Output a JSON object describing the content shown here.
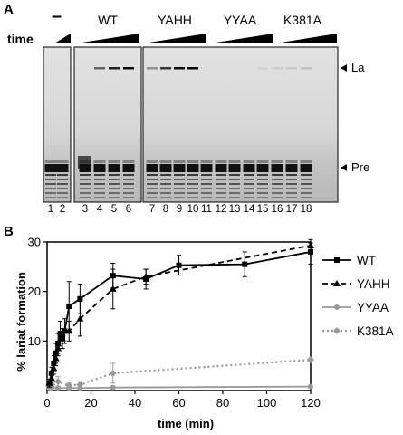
{
  "panel_a": {
    "letter": "A",
    "time_label": "time",
    "minus_label": "–",
    "groups": [
      "WT",
      "YAHH",
      "YYAA",
      "K381A"
    ],
    "lanes": [
      "1",
      "2",
      "3",
      "4",
      "5",
      "6",
      "7",
      "8",
      "9",
      "10",
      "11",
      "12",
      "13",
      "14",
      "15",
      "16",
      "17",
      "18"
    ],
    "band_la": "La",
    "band_pre": "Pre",
    "la_intensity": [
      0,
      0,
      0,
      0.55,
      0.85,
      0.95,
      0.35,
      0.75,
      0.95,
      1.0,
      0,
      0,
      0,
      0,
      0.05,
      0.08,
      0.1,
      0.12
    ]
  },
  "panel_b": {
    "letter": "B",
    "chart_data": {
      "type": "line",
      "title": "",
      "xlabel": "time (min)",
      "ylabel": "% lariat formation",
      "xlim": [
        0,
        120
      ],
      "ylim": [
        0,
        30
      ],
      "xticks": [
        0,
        20,
        40,
        60,
        80,
        100,
        120
      ],
      "yticks": [
        10,
        20,
        30
      ],
      "legend_position": "right",
      "series": [
        {
          "name": "WT",
          "style": "solid",
          "marker": "square",
          "color": "#000000",
          "x": [
            1,
            2,
            3,
            4,
            5,
            6,
            7,
            8,
            10,
            15,
            30,
            45,
            60,
            90,
            120
          ],
          "y": [
            1.5,
            3.5,
            5.5,
            7.5,
            9.5,
            11.5,
            10.5,
            12.0,
            17.0,
            18.5,
            23.2,
            22.5,
            25.3,
            25.5,
            28.0
          ],
          "err": [
            0.8,
            1.2,
            1.5,
            2.0,
            2.0,
            2.5,
            2.0,
            2.5,
            5.0,
            3.0,
            2.5,
            2.0,
            2.0,
            2.5,
            2.5
          ]
        },
        {
          "name": "YAHH",
          "style": "dashed",
          "marker": "triangle",
          "color": "#000000",
          "x": [
            1,
            2,
            3,
            4,
            5,
            7,
            10,
            15,
            30,
            45,
            120
          ],
          "y": [
            1.5,
            2.5,
            4.5,
            6.5,
            8.5,
            10.5,
            12.0,
            14.5,
            20.5,
            23.0,
            29.3
          ],
          "err": [
            0.8,
            1.0,
            1.2,
            1.5,
            1.5,
            2.0,
            2.0,
            3.5,
            4.0,
            1.5,
            0.5
          ]
        },
        {
          "name": "YYAA",
          "style": "solid",
          "marker": "circle",
          "color": "#999999",
          "x": [
            1,
            2,
            5,
            10,
            15,
            30,
            120
          ],
          "y": [
            0.5,
            0.5,
            0.5,
            0.5,
            0.5,
            0.6,
            0.8
          ],
          "err": [
            0.3,
            0.3,
            0.3,
            0.3,
            0.3,
            0.3,
            0.3
          ]
        },
        {
          "name": "K381A",
          "style": "dotted",
          "marker": "diamond",
          "color": "#999999",
          "x": [
            1,
            2,
            5,
            10,
            15,
            30,
            120
          ],
          "y": [
            0.8,
            0.8,
            1.8,
            1.0,
            1.2,
            3.5,
            6.2
          ],
          "err": [
            0.4,
            0.4,
            1.0,
            0.5,
            0.6,
            2.0,
            0.4
          ]
        }
      ]
    }
  }
}
